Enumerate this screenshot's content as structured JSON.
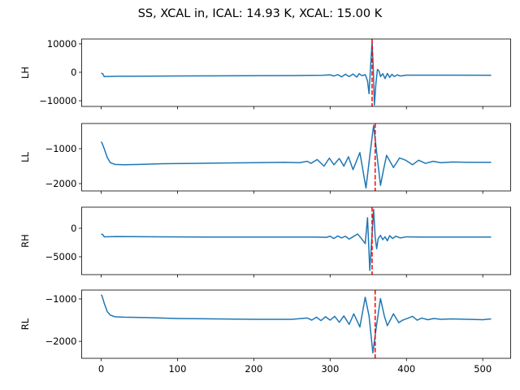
{
  "chart_data": {
    "type": "line",
    "title": "SS, XCAL in, ICAL: 14.93 K, XCAL: 15.00 K",
    "xlim": [
      -25.55,
      536.55
    ],
    "xticks": [
      0,
      100,
      200,
      300,
      400,
      500
    ],
    "xtick_labels": [
      "0",
      "100",
      "200",
      "300",
      "400",
      "500"
    ],
    "line_color": "#1f77b4",
    "marker_color": "#ff0000",
    "subplots": [
      {
        "ylabel": "LH",
        "ylim": [
          -12000,
          11700
        ],
        "yticks": [
          -10000,
          0,
          10000
        ],
        "ytick_labels": [
          "−10000",
          "0",
          "10000"
        ],
        "axvline": 355,
        "x": [
          0,
          2,
          4,
          20,
          60,
          100,
          150,
          200,
          250,
          290,
          300,
          305,
          310,
          315,
          320,
          325,
          330,
          335,
          338,
          342,
          346,
          349,
          351,
          353,
          355,
          356.5,
          358,
          360,
          362,
          364,
          366,
          369,
          372,
          375,
          378,
          381,
          384,
          388,
          392,
          400,
          420,
          460,
          511
        ],
        "y": [
          -300,
          -500,
          -1500,
          -1400,
          -1350,
          -1300,
          -1250,
          -1200,
          -1150,
          -1050,
          -900,
          -1300,
          -800,
          -1600,
          -700,
          -1500,
          -600,
          -1700,
          -500,
          -1200,
          -800,
          -3000,
          -7500,
          2000,
          10500,
          2000,
          -11500,
          -4000,
          1000,
          500,
          -1500,
          -500,
          -2200,
          -400,
          -1800,
          -700,
          -1500,
          -900,
          -1300,
          -1000,
          -1000,
          -1000,
          -1050
        ]
      },
      {
        "ylabel": "LL",
        "ylim": [
          -2209,
          -279
        ],
        "yticks": [
          -2000,
          -1000
        ],
        "ytick_labels": [
          "−2000",
          "−1000"
        ],
        "axvline": 359,
        "x": [
          0,
          1,
          4,
          8,
          12,
          18,
          30,
          50,
          80,
          120,
          160,
          200,
          240,
          260,
          270,
          275,
          283,
          292,
          299,
          305,
          312,
          318,
          324,
          330,
          339,
          347,
          352,
          357,
          362,
          366,
          370,
          374,
          383,
          391,
          399,
          408,
          416,
          425,
          435,
          445,
          460,
          480,
          511
        ],
        "y": [
          -800,
          -830,
          -1000,
          -1250,
          -1400,
          -1450,
          -1460,
          -1450,
          -1430,
          -1420,
          -1410,
          -1400,
          -1390,
          -1400,
          -1360,
          -1420,
          -1310,
          -1500,
          -1270,
          -1460,
          -1280,
          -1500,
          -1230,
          -1600,
          -1110,
          -2125,
          -1200,
          -330,
          -1300,
          -2050,
          -1600,
          -1190,
          -1540,
          -1265,
          -1330,
          -1460,
          -1330,
          -1420,
          -1360,
          -1400,
          -1380,
          -1390,
          -1390
        ]
      },
      {
        "ylabel": "RH",
        "ylim": [
          -8140,
          3700
        ],
        "yticks": [
          -5000,
          0
        ],
        "ytick_labels": [
          "−5000",
          "0"
        ],
        "axvline": 355,
        "x": [
          0,
          2,
          4,
          20,
          80,
          150,
          220,
          280,
          295,
          300,
          305,
          310,
          315,
          320,
          325,
          330,
          336,
          341,
          346,
          349,
          352,
          355,
          357,
          359,
          361,
          363,
          366,
          369,
          372,
          375,
          378,
          382,
          386,
          392,
          400,
          420,
          460,
          511
        ],
        "y": [
          -1000,
          -1100,
          -1500,
          -1450,
          -1500,
          -1550,
          -1550,
          -1550,
          -1600,
          -1400,
          -1800,
          -1350,
          -1700,
          -1400,
          -1900,
          -1500,
          -1000,
          -1800,
          -2700,
          1850,
          -7400,
          -1000,
          3300,
          -1500,
          -3600,
          -1800,
          -1250,
          -2000,
          -1500,
          -2200,
          -1300,
          -1800,
          -1400,
          -1700,
          -1500,
          -1550,
          -1550,
          -1550
        ]
      },
      {
        "ylabel": "RL",
        "ylim": [
          -2400,
          -790
        ],
        "yticks": [
          -2000,
          -1000
        ],
        "ytick_labels": [
          "−2000",
          "−1000"
        ],
        "axvline": 359,
        "x": [
          0,
          1,
          4,
          8,
          12,
          18,
          30,
          60,
          100,
          150,
          200,
          250,
          270,
          276,
          282,
          288,
          294,
          300,
          306,
          312,
          318,
          325,
          331,
          339,
          346,
          351,
          356,
          361,
          366,
          371,
          375,
          383,
          390,
          395,
          401,
          408,
          414,
          420,
          428,
          436,
          445,
          460,
          480,
          500,
          511
        ],
        "y": [
          -900,
          -920,
          -1100,
          -1300,
          -1380,
          -1420,
          -1430,
          -1440,
          -1460,
          -1470,
          -1480,
          -1480,
          -1450,
          -1500,
          -1430,
          -1510,
          -1420,
          -1500,
          -1410,
          -1550,
          -1400,
          -1600,
          -1350,
          -1660,
          -960,
          -1400,
          -2270,
          -1600,
          -990,
          -1400,
          -1630,
          -1350,
          -1560,
          -1500,
          -1460,
          -1410,
          -1500,
          -1450,
          -1490,
          -1460,
          -1480,
          -1470,
          -1480,
          -1490,
          -1470
        ]
      }
    ]
  }
}
